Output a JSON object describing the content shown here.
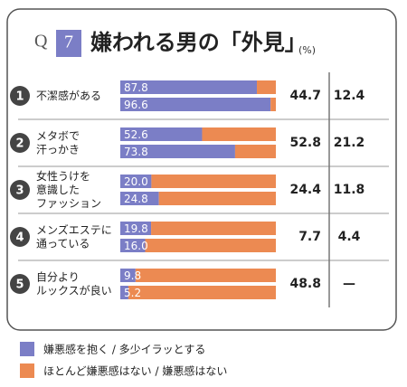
{
  "chart_data": {
    "type": "bar",
    "stacked": true,
    "q_label": "Q",
    "q_number": "7",
    "title": "嫌われる男の「外見」",
    "unit": "(%)",
    "numbers": [
      "1",
      "2",
      "3",
      "4",
      "5"
    ],
    "categories": [
      "不潔感がある",
      "メタボで\n汗っかき",
      "女性うけを\n意識した\nファッション",
      "メンズエステに\n通っている",
      "自分より\nルックスが良い"
    ],
    "xlim": [
      0,
      100
    ],
    "series": [
      {
        "name": "嫌悪感を抱く / 多少イラッとする",
        "color": "#7b7ec6",
        "values": [
          [
            87.8,
            96.6
          ],
          [
            52.6,
            73.8
          ],
          [
            20,
            24.8
          ],
          [
            19.8,
            16
          ],
          [
            9.8,
            5.2
          ]
        ],
        "value_labels": [
          [
            "87.8",
            "96.6"
          ],
          [
            "52.6",
            "73.8"
          ],
          [
            "20.0",
            "24.8"
          ],
          [
            "19.8",
            "16.0"
          ],
          [
            "9.8",
            "5.2"
          ]
        ]
      },
      {
        "name": "ほとんど嫌悪感はない / 嫌悪感はない",
        "color": "#ec8a52",
        "values": [
          [
            12.2,
            3.4
          ],
          [
            47.4,
            26.2
          ],
          [
            80,
            75.2
          ],
          [
            80.2,
            84
          ],
          [
            90.2,
            94.8
          ]
        ]
      }
    ],
    "right_columns": [
      {
        "values": [
          44.7,
          52.8,
          24.4,
          7.7,
          48.8
        ]
      },
      {
        "values": [
          12.4,
          21.2,
          11.8,
          4.4,
          null
        ],
        "value_labels": [
          "12.4",
          "21.2",
          "11.8",
          "4.4",
          "—"
        ]
      }
    ]
  }
}
